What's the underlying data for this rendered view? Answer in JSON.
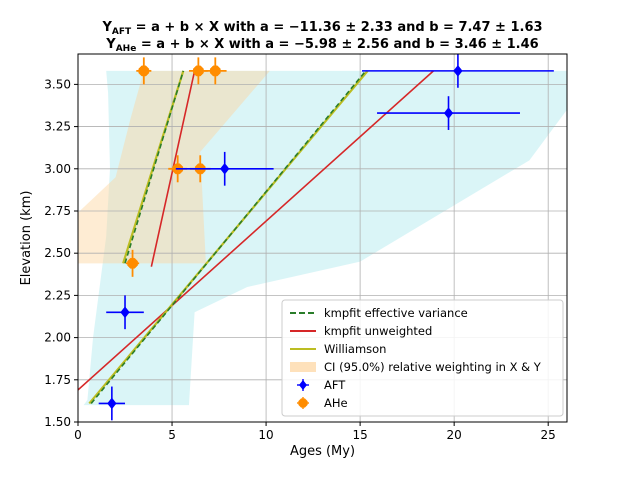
{
  "chart_data": {
    "type": "scatter",
    "title_lines": [
      {
        "label": "Y",
        "sub": "AFT",
        "text": " = a + b × X with a = −11.36 ± 2.33 and b = 7.47 ± 1.63"
      },
      {
        "label": "Y",
        "sub": "AHe",
        "text": " = a + b × X with a = −5.98 ± 2.56 and b = 3.46 ± 1.46"
      }
    ],
    "xlabel": "Ages (My)",
    "ylabel": "Elevation (km)",
    "xlim": [
      0,
      26
    ],
    "ylim": [
      1.5,
      3.68
    ],
    "xticks": [
      0,
      5,
      10,
      15,
      20,
      25
    ],
    "xtick_labels": [
      "0",
      "5",
      "10",
      "15",
      "20",
      "25"
    ],
    "yticks": [
      1.5,
      1.75,
      2.0,
      2.25,
      2.5,
      2.75,
      3.0,
      3.25,
      3.5
    ],
    "ytick_labels": [
      "1.50",
      "1.75",
      "2.00",
      "2.25",
      "2.50",
      "2.75",
      "3.00",
      "3.25",
      "3.50"
    ],
    "grid": true,
    "legend_position": "lower-right",
    "colors": {
      "aft": "#0000ff",
      "ahe": "#ff8c00",
      "kmpfit_effective": "#2a7d2a",
      "kmpfit_unweighted": "#d62728",
      "williamson": "#bcbd22",
      "ci_aft": "#17becf",
      "ci_ahe": "#fdd49e"
    },
    "series": [
      {
        "name": "AFT",
        "kind": "points",
        "marker": "diamond",
        "points": [
          {
            "x": 1.8,
            "y": 1.61,
            "xerr": 0.7,
            "yerr": 0.1
          },
          {
            "x": 2.5,
            "y": 2.15,
            "xerr": 1.0,
            "yerr": 0.1
          },
          {
            "x": 7.8,
            "y": 3.0,
            "xerr": 2.6,
            "yerr": 0.1
          },
          {
            "x": 19.7,
            "y": 3.33,
            "xerr": 3.8,
            "yerr": 0.1
          },
          {
            "x": 20.2,
            "y": 3.58,
            "xerr": 5.1,
            "yerr": 0.1
          }
        ]
      },
      {
        "name": "AHe",
        "kind": "points",
        "marker": "octagon",
        "points": [
          {
            "x": 2.9,
            "y": 2.44,
            "xerr": 0.35,
            "yerr": 0.08
          },
          {
            "x": 5.3,
            "y": 3.0,
            "xerr": 0.5,
            "yerr": 0.08
          },
          {
            "x": 6.5,
            "y": 3.0,
            "xerr": 0.55,
            "yerr": 0.08
          },
          {
            "x": 3.5,
            "y": 3.58,
            "xerr": 0.4,
            "yerr": 0.08
          },
          {
            "x": 6.4,
            "y": 3.58,
            "xerr": 0.5,
            "yerr": 0.08
          },
          {
            "x": 7.3,
            "y": 3.58,
            "xerr": 0.6,
            "yerr": 0.08
          }
        ]
      },
      {
        "name": "kmpfit effective variance",
        "kind": "line",
        "dashed": true,
        "segments": [
          [
            [
              0.7,
              1.61
            ],
            [
              15.3,
              3.58
            ]
          ],
          [
            [
              2.5,
              2.44
            ],
            [
              5.6,
              3.58
            ]
          ]
        ]
      },
      {
        "name": "kmpfit unweighted",
        "kind": "line",
        "dashed": false,
        "segments": [
          [
            [
              0.0,
              1.69
            ],
            [
              18.9,
              3.58
            ]
          ],
          [
            [
              3.9,
              2.42
            ],
            [
              6.2,
              3.58
            ]
          ]
        ]
      },
      {
        "name": "Williamson",
        "kind": "line",
        "dashed": false,
        "segments": [
          [
            [
              0.6,
              1.61
            ],
            [
              15.4,
              3.58
            ]
          ],
          [
            [
              2.4,
              2.44
            ],
            [
              5.6,
              3.58
            ]
          ]
        ]
      },
      {
        "name": "CI (95.0%) relative weighting in X & Y",
        "kind": "band"
      }
    ],
    "bands": [
      {
        "series": "AFT",
        "polygon": [
          [
            0.3,
            1.6
          ],
          [
            0.5,
            1.63
          ],
          [
            0.8,
            2.0
          ],
          [
            1.5,
            2.6
          ],
          [
            1.7,
            3.0
          ],
          [
            1.6,
            3.45
          ],
          [
            1.5,
            3.58
          ],
          [
            26,
            3.58
          ],
          [
            26,
            3.35
          ],
          [
            24,
            3.05
          ],
          [
            15,
            2.45
          ],
          [
            9,
            2.3
          ],
          [
            6.2,
            2.15
          ],
          [
            5.9,
            1.6
          ]
        ]
      },
      {
        "series": "AHe",
        "polygon": [
          [
            0.0,
            2.74
          ],
          [
            2.0,
            2.95
          ],
          [
            2.8,
            3.3
          ],
          [
            3.5,
            3.58
          ],
          [
            10.2,
            3.58
          ],
          [
            6.5,
            3.1
          ],
          [
            6.8,
            2.44
          ],
          [
            0.0,
            2.44
          ]
        ]
      }
    ],
    "legend": [
      {
        "label": "kmpfit effective variance",
        "symbol": "dash"
      },
      {
        "label": "kmpfit unweighted",
        "symbol": "line-red"
      },
      {
        "label": "Williamson",
        "symbol": "line-olive"
      },
      {
        "label": "CI (95.0%) relative weighting in X & Y",
        "symbol": "patch"
      },
      {
        "label": "AFT",
        "symbol": "diamond"
      },
      {
        "label": "AHe",
        "symbol": "octagon"
      }
    ]
  }
}
